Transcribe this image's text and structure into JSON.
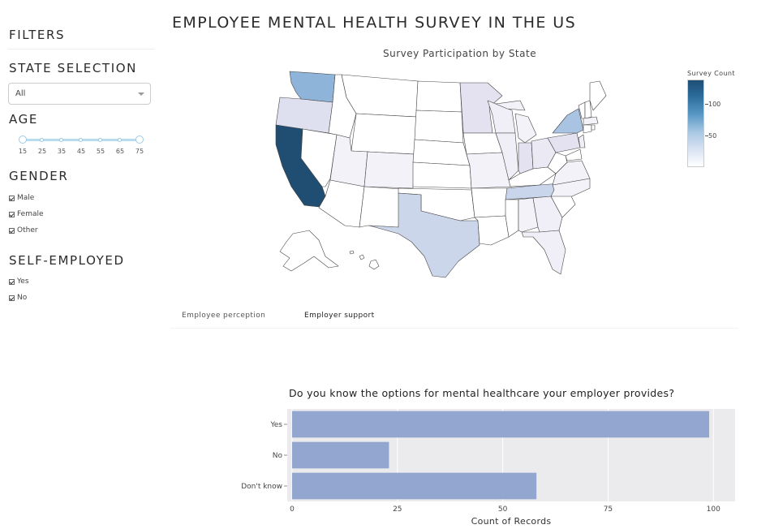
{
  "page": {
    "title": "EMPLOYEE MENTAL HEALTH SURVEY IN THE US"
  },
  "sidebar": {
    "filters_title": "FILTERS",
    "state_selection": {
      "title": "STATE SELECTION",
      "selected": "All"
    },
    "age": {
      "title": "AGE",
      "marks": [
        "15",
        "25",
        "35",
        "45",
        "55",
        "65",
        "75"
      ],
      "range": [
        15,
        75
      ]
    },
    "gender": {
      "title": "GENDER",
      "options": [
        {
          "label": "Male",
          "checked": true
        },
        {
          "label": "Female",
          "checked": true
        },
        {
          "label": "Other",
          "checked": true
        }
      ]
    },
    "self_employed": {
      "title": "SELF-EMPLOYED",
      "options": [
        {
          "label": "Yes",
          "checked": true
        },
        {
          "label": "No",
          "checked": true
        }
      ]
    }
  },
  "map": {
    "title": "Survey Participation by State",
    "colorbar": {
      "title": "Survey Count",
      "ticks": [
        "100",
        "50"
      ]
    },
    "highlighted_states": [
      "California",
      "Washington",
      "New York",
      "Texas",
      "Tennessee",
      "Oregon"
    ]
  },
  "tabs": [
    {
      "label": "Employee perception",
      "active": false
    },
    {
      "label": "Employer support",
      "active": true
    }
  ],
  "chart_data": {
    "type": "bar",
    "orientation": "horizontal",
    "title": "Do you know the options for mental healthcare your employer provides?",
    "categories": [
      "Yes",
      "No",
      "Don't know"
    ],
    "values": [
      99,
      23,
      58
    ],
    "xlabel": "Count of Records",
    "ylabel": "",
    "xlim": [
      0,
      104
    ],
    "xticks": [
      0,
      25,
      50,
      75,
      100
    ],
    "grid": true,
    "bar_color": "#93a6cf"
  }
}
